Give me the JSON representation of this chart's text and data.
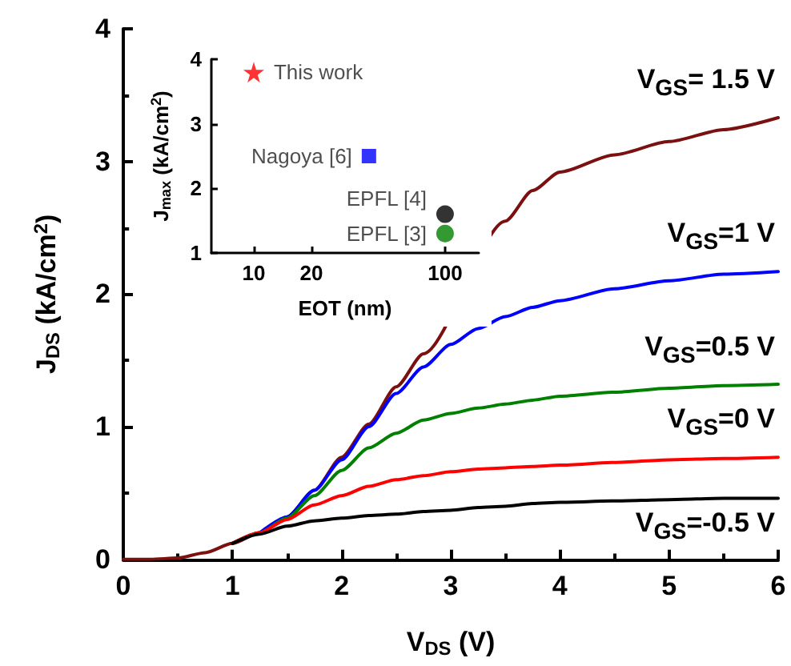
{
  "chart_data": [
    {
      "type": "line",
      "xlabel": "V$_{DS}$ (V)",
      "ylabel": "J$_{DS}$ (kA/cm$^{2}$)",
      "xlim": [
        0,
        6
      ],
      "xticks": [
        0,
        1,
        2,
        3,
        4,
        5,
        6
      ],
      "ylim": [
        0,
        4
      ],
      "yticks": [
        0,
        1,
        2,
        3,
        4
      ],
      "grid": false,
      "legend": false,
      "marker": "none",
      "line_style": "solid",
      "x": [
        0,
        0.25,
        0.5,
        0.75,
        1,
        1.25,
        1.5,
        1.75,
        2,
        2.25,
        2.5,
        2.75,
        3,
        3.25,
        3.5,
        3.75,
        4,
        4.5,
        5,
        5.5,
        6
      ],
      "series": [
        {
          "name": "V$_{GS}$= 1.5 V",
          "color": "#7b1010",
          "values": [
            0,
            0,
            0.01,
            0.05,
            0.12,
            0.2,
            0.32,
            0.52,
            0.77,
            1.02,
            1.3,
            1.55,
            null,
            null,
            2.55,
            2.78,
            2.92,
            3.05,
            3.15,
            3.24,
            3.33
          ]
        },
        {
          "name": "V$_{GS}$=1 V",
          "color": "#0000ff",
          "values": [
            null,
            null,
            null,
            null,
            null,
            0.2,
            0.32,
            0.52,
            0.75,
            1.0,
            1.25,
            1.45,
            1.62,
            1.74,
            1.83,
            1.9,
            1.95,
            2.04,
            2.1,
            2.15,
            2.17
          ]
        },
        {
          "name": "V$_{GS}$=0.5 V",
          "color": "#008000",
          "values": [
            null,
            null,
            null,
            null,
            0.12,
            0.2,
            0.31,
            0.48,
            0.67,
            0.84,
            0.95,
            1.05,
            1.1,
            1.14,
            1.17,
            1.2,
            1.23,
            1.26,
            1.29,
            1.31,
            1.32
          ]
        },
        {
          "name": "V$_{GS}$=0 V",
          "color": "#ff0000",
          "values": [
            null,
            null,
            null,
            null,
            0.12,
            0.2,
            0.3,
            0.41,
            0.48,
            0.55,
            0.6,
            0.63,
            0.66,
            0.68,
            0.69,
            0.7,
            0.71,
            0.73,
            0.75,
            0.76,
            0.77
          ]
        },
        {
          "name": "V$_{GS}$=-0.5 V",
          "color": "#000000",
          "values": [
            null,
            null,
            null,
            null,
            0.12,
            0.19,
            0.25,
            0.29,
            0.31,
            0.33,
            0.34,
            0.36,
            0.37,
            0.39,
            0.4,
            0.42,
            0.43,
            0.44,
            0.45,
            0.46,
            0.46
          ]
        }
      ]
    },
    {
      "type": "scatter",
      "xlabel": "EOT (nm)",
      "ylabel": "J$_{max}$ (kA/cm$^{2}$)",
      "log": "x",
      "xlim": [
        6,
        150
      ],
      "xticks": [
        10,
        20,
        100
      ],
      "ylim": [
        1,
        4
      ],
      "yticks": [
        1,
        2,
        3,
        4
      ],
      "grid": false,
      "legend": false,
      "series": [
        {
          "name": "This work",
          "color": "#ff0000",
          "marker": "star",
          "x": [
            10
          ],
          "values": [
            3.8
          ]
        },
        {
          "name": "Nagoya [6]",
          "color": "#0000ff",
          "marker": "square",
          "x": [
            40
          ],
          "values": [
            2.5
          ]
        },
        {
          "name": "EPFL [4]",
          "color": "#000000",
          "marker": "circle",
          "x": [
            100
          ],
          "values": [
            1.6
          ]
        },
        {
          "name": "EPFL [3]",
          "color": "#008000",
          "marker": "circle",
          "x": [
            100
          ],
          "values": [
            1.3
          ]
        }
      ]
    }
  ]
}
